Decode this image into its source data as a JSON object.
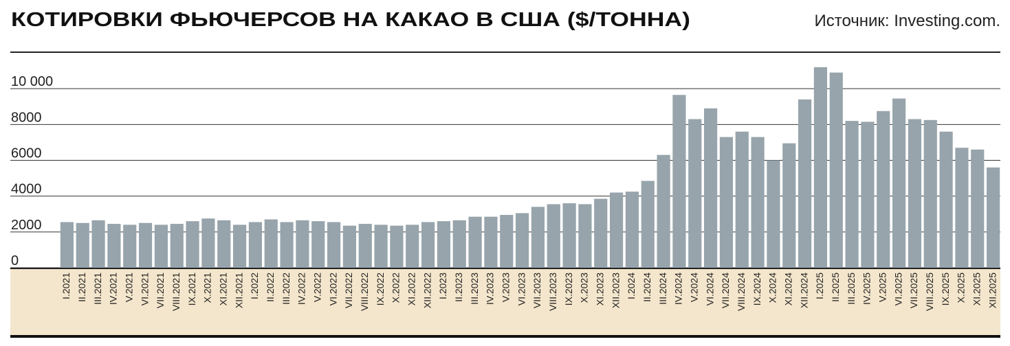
{
  "chart_data": {
    "type": "bar",
    "title": "КОТИРОВКИ ФЬЮЧЕРСОВ НА КАКАО В США ($/ТОННА)",
    "source": "Источник:  Investing.com.",
    "categories": [
      "I.2021",
      "II.2021",
      "III.2021",
      "IV.2021",
      "V.2021",
      "VI.2021",
      "VII.2021",
      "VIII.2021",
      "IX.2021",
      "X.2021",
      "XI.2021",
      "XII.2021",
      "I.2022",
      "II.2022",
      "III.2022",
      "IV.2022",
      "V.2022",
      "VI.2022",
      "VII.2022",
      "VIII.2022",
      "IX.2022",
      "X.2022",
      "XI.2022",
      "XII.2022",
      "I.2023",
      "II.2023",
      "III.2023",
      "IV.2023",
      "V.2023",
      "VI.2023",
      "VII.2023",
      "VIII.2023",
      "IX.2023",
      "X.2023",
      "XI.2023",
      "XII.2023",
      "I.2024",
      "II.2024",
      "III.2024",
      "IV.2024",
      "V.2024",
      "VI.2024",
      "VII.2024",
      "VIII.2024",
      "IX.2024",
      "X.2024",
      "XI.2024",
      "XII.2024",
      "I.2025",
      "II.2025",
      "III.2025",
      "IV.2025",
      "V.2025",
      "VI.2025",
      "VII.2025",
      "VIII.2025",
      "IX.2025",
      "X.2025",
      "XI.2025",
      "XII.2025"
    ],
    "values": [
      2550,
      2500,
      2650,
      2450,
      2400,
      2500,
      2400,
      2450,
      2600,
      2750,
      2650,
      2400,
      2550,
      2700,
      2550,
      2650,
      2600,
      2550,
      2350,
      2450,
      2400,
      2350,
      2400,
      2550,
      2600,
      2650,
      2850,
      2850,
      2950,
      3050,
      3400,
      3550,
      3600,
      3550,
      3850,
      4200,
      4250,
      4850,
      6300,
      9650,
      8300,
      8900,
      7300,
      7600,
      7300,
      6000,
      6950,
      9400,
      11200,
      10900,
      8200,
      8150,
      8750,
      9450,
      8300,
      8250,
      7600,
      6700,
      6600,
      5600
    ],
    "color": "#97a4ab",
    "ylim": [
      0,
      12000
    ],
    "yticks": [
      0,
      2000,
      4000,
      6000,
      8000,
      {
        "value": 10000,
        "label": "10 000"
      }
    ],
    "grid": true
  }
}
